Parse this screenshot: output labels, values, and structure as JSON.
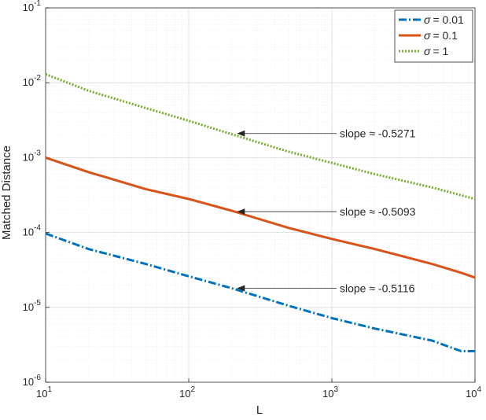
{
  "chart_data": {
    "type": "line",
    "title": "",
    "xlabel": "L",
    "ylabel": "Matched Distance",
    "x_scale": "log",
    "y_scale": "log",
    "xlim": [
      10,
      10000
    ],
    "ylim": [
      1e-06,
      0.1
    ],
    "grid": true,
    "legend_position": "top-right",
    "x_ticks": [
      {
        "base": "10",
        "exp": "1"
      },
      {
        "base": "10",
        "exp": "2"
      },
      {
        "base": "10",
        "exp": "3"
      },
      {
        "base": "10",
        "exp": "4"
      }
    ],
    "y_ticks": [
      {
        "base": "10",
        "exp": "-6"
      },
      {
        "base": "10",
        "exp": "-5"
      },
      {
        "base": "10",
        "exp": "-4"
      },
      {
        "base": "10",
        "exp": "-3"
      },
      {
        "base": "10",
        "exp": "-2"
      },
      {
        "base": "10",
        "exp": "-1"
      }
    ],
    "series": [
      {
        "name_symbol": "σ",
        "name_value": "= 0.01",
        "color": "#0072BD",
        "dash": "dashdot",
        "x": [
          10,
          20,
          50,
          100,
          200,
          500,
          1000,
          2000,
          5000,
          8000,
          10000
        ],
        "y": [
          9.7e-05,
          6e-05,
          3.8e-05,
          2.6e-05,
          1.8e-05,
          1.05e-05,
          7.2e-06,
          5.2e-06,
          3.6e-06,
          2.6e-06,
          2.6e-06
        ]
      },
      {
        "name_symbol": "σ",
        "name_value": "= 0.1",
        "color": "#D95319",
        "dash": "solid",
        "x": [
          10,
          20,
          50,
          100,
          200,
          500,
          1000,
          2000,
          5000,
          8000,
          10000
        ],
        "y": [
          0.001,
          0.00064,
          0.00038,
          0.00028,
          0.000195,
          0.000115,
          8.2e-05,
          6e-05,
          3.8e-05,
          2.9e-05,
          2.5e-05
        ]
      },
      {
        "name_symbol": "σ",
        "name_value": "= 1",
        "color": "#77AC30",
        "dash": "dotted",
        "x": [
          10,
          20,
          50,
          100,
          200,
          500,
          1000,
          2000,
          5000,
          10000
        ],
        "y": [
          0.013,
          0.0078,
          0.0046,
          0.0031,
          0.00205,
          0.0012,
          0.00085,
          0.0006,
          0.0004,
          0.00028
        ]
      }
    ],
    "annotations": [
      {
        "text": "slope ≈ -0.5271",
        "x": 220,
        "y": 0.0021
      },
      {
        "text": "slope ≈ -0.5093",
        "x": 220,
        "y": 0.00019
      },
      {
        "text": "slope ≈ -0.5116",
        "x": 220,
        "y": 1.8e-05
      }
    ]
  }
}
